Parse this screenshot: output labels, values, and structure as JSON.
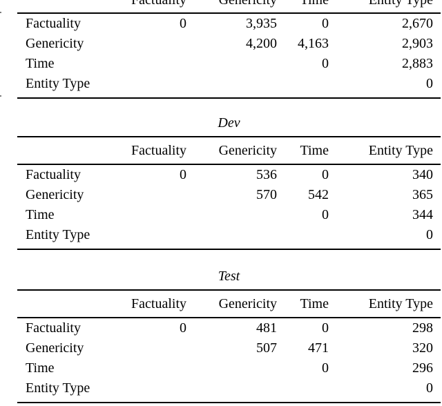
{
  "page": {
    "background_color": "#ffffff",
    "text_color": "#000000",
    "rule_color": "#000000",
    "edge_fragment_color": "#7a7a7a"
  },
  "tables": [
    {
      "name": "train-table-partial",
      "title": "",
      "columns": [
        "Factuality",
        "Genericity",
        "Time",
        "Entity Type"
      ],
      "rows": [
        {
          "label": "Factuality",
          "values": [
            "0",
            "3,935",
            "0",
            "2,670"
          ]
        },
        {
          "label": "Genericity",
          "values": [
            "",
            "4,200",
            "4,163",
            "2,903"
          ]
        },
        {
          "label": "Time",
          "values": [
            "",
            "",
            "0",
            "2,883"
          ]
        },
        {
          "label": "Entity Type",
          "values": [
            "",
            "",
            "",
            "0"
          ]
        }
      ]
    },
    {
      "name": "dev-table",
      "title": "Dev",
      "columns": [
        "Factuality",
        "Genericity",
        "Time",
        "Entity Type"
      ],
      "rows": [
        {
          "label": "Factuality",
          "values": [
            "0",
            "536",
            "0",
            "340"
          ]
        },
        {
          "label": "Genericity",
          "values": [
            "",
            "570",
            "542",
            "365"
          ]
        },
        {
          "label": "Time",
          "values": [
            "",
            "",
            "0",
            "344"
          ]
        },
        {
          "label": "Entity Type",
          "values": [
            "",
            "",
            "",
            "0"
          ]
        }
      ]
    },
    {
      "name": "test-table",
      "title": "Test",
      "columns": [
        "Factuality",
        "Genericity",
        "Time",
        "Entity Type"
      ],
      "rows": [
        {
          "label": "Factuality",
          "values": [
            "0",
            "481",
            "0",
            "298"
          ]
        },
        {
          "label": "Genericity",
          "values": [
            "",
            "507",
            "471",
            "320"
          ]
        },
        {
          "label": "Time",
          "values": [
            "",
            "",
            "0",
            "296"
          ]
        },
        {
          "label": "Entity Type",
          "values": [
            "",
            "",
            "",
            "0"
          ]
        }
      ]
    }
  ]
}
